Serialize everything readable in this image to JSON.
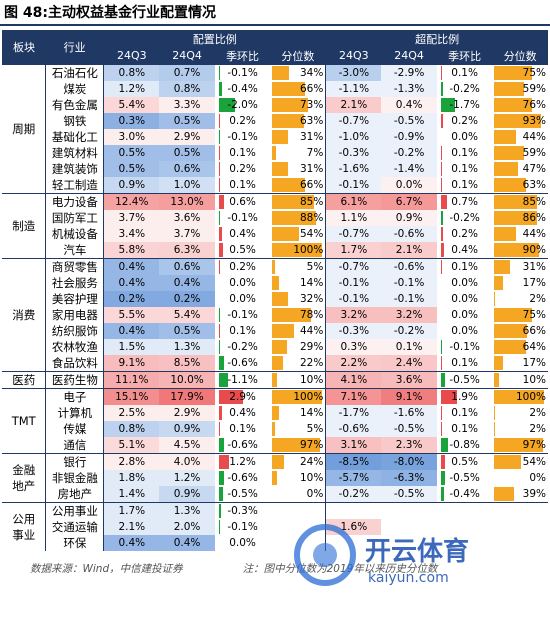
{
  "title": "图 48:主动权益基金行业配置情况",
  "headers": {
    "block": "板块",
    "industry": "行业",
    "alloc_group": "配置比例",
    "over_group": "超配比例",
    "q1": "24Q3",
    "q2": "24Q4",
    "qoq": "季环比",
    "pct": "分位数"
  },
  "groups": [
    {
      "name": "周期",
      "rows": [
        {
          "ind": "石油石化",
          "a3": "0.8%",
          "a4": "0.7%",
          "aq": "-0.1%",
          "aqv": -0.1,
          "ap": "34%",
          "apv": 34,
          "o3": "-3.0%",
          "o4": "-2.9%",
          "oq": "0.1%",
          "oqv": 0.1,
          "op": "75%",
          "opv": 75,
          "a3v": 0.8,
          "a4v": 0.7,
          "o3v": -3.0,
          "o4v": -2.9
        },
        {
          "ind": "煤炭",
          "a3": "1.2%",
          "a4": "0.8%",
          "aq": "-0.4%",
          "aqv": -0.4,
          "ap": "66%",
          "apv": 66,
          "o3": "-1.1%",
          "o4": "-1.3%",
          "oq": "-0.2%",
          "oqv": -0.2,
          "op": "59%",
          "opv": 59,
          "a3v": 1.2,
          "a4v": 0.8,
          "o3v": -1.1,
          "o4v": -1.3
        },
        {
          "ind": "有色金属",
          "a3": "5.4%",
          "a4": "3.3%",
          "aq": "-2.0%",
          "aqv": -2.0,
          "ap": "73%",
          "apv": 73,
          "o3": "2.1%",
          "o4": "0.4%",
          "oq": "-1.7%",
          "oqv": -1.7,
          "op": "76%",
          "opv": 76,
          "a3v": 5.4,
          "a4v": 3.3,
          "o3v": 2.1,
          "o4v": 0.4
        },
        {
          "ind": "钢铁",
          "a3": "0.3%",
          "a4": "0.5%",
          "aq": "0.2%",
          "aqv": 0.2,
          "ap": "63%",
          "apv": 63,
          "o3": "-0.7%",
          "o4": "-0.5%",
          "oq": "0.2%",
          "oqv": 0.2,
          "op": "93%",
          "opv": 93,
          "a3v": 0.3,
          "a4v": 0.5,
          "o3v": -0.7,
          "o4v": -0.5
        },
        {
          "ind": "基础化工",
          "a3": "3.0%",
          "a4": "2.9%",
          "aq": "-0.1%",
          "aqv": -0.1,
          "ap": "31%",
          "apv": 31,
          "o3": "-1.0%",
          "o4": "-0.9%",
          "oq": "0.0%",
          "oqv": 0.0,
          "op": "44%",
          "opv": 44,
          "a3v": 3.0,
          "a4v": 2.9,
          "o3v": -1.0,
          "o4v": -0.9
        },
        {
          "ind": "建筑材料",
          "a3": "0.5%",
          "a4": "0.5%",
          "aq": "0.1%",
          "aqv": 0.1,
          "ap": "7%",
          "apv": 7,
          "o3": "-0.3%",
          "o4": "-0.2%",
          "oq": "0.1%",
          "oqv": 0.1,
          "op": "59%",
          "opv": 59,
          "a3v": 0.5,
          "a4v": 0.5,
          "o3v": -0.3,
          "o4v": -0.2
        },
        {
          "ind": "建筑装饰",
          "a3": "0.5%",
          "a4": "0.6%",
          "aq": "0.2%",
          "aqv": 0.2,
          "ap": "31%",
          "apv": 31,
          "o3": "-1.6%",
          "o4": "-1.4%",
          "oq": "0.1%",
          "oqv": 0.1,
          "op": "47%",
          "opv": 47,
          "a3v": 0.5,
          "a4v": 0.6,
          "o3v": -1.6,
          "o4v": -1.4
        },
        {
          "ind": "轻工制造",
          "a3": "0.9%",
          "a4": "1.0%",
          "aq": "0.1%",
          "aqv": 0.1,
          "ap": "66%",
          "apv": 66,
          "o3": "-0.1%",
          "o4": "0.0%",
          "oq": "0.1%",
          "oqv": 0.1,
          "op": "63%",
          "opv": 63,
          "a3v": 0.9,
          "a4v": 1.0,
          "o3v": -0.1,
          "o4v": 0.0
        }
      ]
    },
    {
      "name": "制造",
      "rows": [
        {
          "ind": "电力设备",
          "a3": "12.4%",
          "a4": "13.0%",
          "aq": "0.6%",
          "aqv": 0.6,
          "ap": "85%",
          "apv": 85,
          "o3": "6.1%",
          "o4": "6.7%",
          "oq": "0.7%",
          "oqv": 0.7,
          "op": "85%",
          "opv": 85,
          "a3v": 12.4,
          "a4v": 13.0,
          "o3v": 6.1,
          "o4v": 6.7
        },
        {
          "ind": "国防军工",
          "a3": "3.7%",
          "a4": "3.6%",
          "aq": "-0.1%",
          "aqv": -0.1,
          "ap": "88%",
          "apv": 88,
          "o3": "1.1%",
          "o4": "0.9%",
          "oq": "-0.2%",
          "oqv": -0.2,
          "op": "86%",
          "opv": 86,
          "a3v": 3.7,
          "a4v": 3.6,
          "o3v": 1.1,
          "o4v": 0.9
        },
        {
          "ind": "机械设备",
          "a3": "3.4%",
          "a4": "3.7%",
          "aq": "0.4%",
          "aqv": 0.4,
          "ap": "54%",
          "apv": 54,
          "o3": "-0.7%",
          "o4": "-0.6%",
          "oq": "0.2%",
          "oqv": 0.2,
          "op": "44%",
          "opv": 44,
          "a3v": 3.4,
          "a4v": 3.7,
          "o3v": -0.7,
          "o4v": -0.6
        },
        {
          "ind": "汽车",
          "a3": "5.8%",
          "a4": "6.3%",
          "aq": "0.5%",
          "aqv": 0.5,
          "ap": "100%",
          "apv": 100,
          "o3": "1.7%",
          "o4": "2.1%",
          "oq": "0.4%",
          "oqv": 0.4,
          "op": "90%",
          "opv": 90,
          "a3v": 5.8,
          "a4v": 6.3,
          "o3v": 1.7,
          "o4v": 2.1
        }
      ]
    },
    {
      "name": "消费",
      "rows": [
        {
          "ind": "商贸零售",
          "a3": "0.4%",
          "a4": "0.6%",
          "aq": "0.2%",
          "aqv": 0.2,
          "ap": "5%",
          "apv": 5,
          "o3": "-0.7%",
          "o4": "-0.6%",
          "oq": "0.1%",
          "oqv": 0.1,
          "op": "31%",
          "opv": 31,
          "a3v": 0.4,
          "a4v": 0.6,
          "o3v": -0.7,
          "o4v": -0.6
        },
        {
          "ind": "社会服务",
          "a3": "0.4%",
          "a4": "0.4%",
          "aq": "0.0%",
          "aqv": 0.0,
          "ap": "14%",
          "apv": 14,
          "o3": "-0.1%",
          "o4": "-0.1%",
          "oq": "0.0%",
          "oqv": 0.0,
          "op": "17%",
          "opv": 17,
          "a3v": 0.4,
          "a4v": 0.4,
          "o3v": -0.1,
          "o4v": -0.1
        },
        {
          "ind": "美容护理",
          "a3": "0.2%",
          "a4": "0.2%",
          "aq": "0.0%",
          "aqv": 0.0,
          "ap": "32%",
          "apv": 32,
          "o3": "-0.1%",
          "o4": "-0.1%",
          "oq": "0.0%",
          "oqv": 0.0,
          "op": "2%",
          "opv": 2,
          "a3v": 0.2,
          "a4v": 0.2,
          "o3v": -0.1,
          "o4v": -0.1
        },
        {
          "ind": "家用电器",
          "a3": "5.5%",
          "a4": "5.4%",
          "aq": "-0.1%",
          "aqv": -0.1,
          "ap": "78%",
          "apv": 78,
          "o3": "3.2%",
          "o4": "3.2%",
          "oq": "0.0%",
          "oqv": 0.0,
          "op": "75%",
          "opv": 75,
          "a3v": 5.5,
          "a4v": 5.4,
          "o3v": 3.2,
          "o4v": 3.2
        },
        {
          "ind": "纺织服饰",
          "a3": "0.4%",
          "a4": "0.5%",
          "aq": "0.1%",
          "aqv": 0.1,
          "ap": "44%",
          "apv": 44,
          "o3": "-0.3%",
          "o4": "-0.2%",
          "oq": "0.0%",
          "oqv": 0.0,
          "op": "66%",
          "opv": 66,
          "a3v": 0.4,
          "a4v": 0.5,
          "o3v": -0.3,
          "o4v": -0.2
        },
        {
          "ind": "农林牧渔",
          "a3": "1.5%",
          "a4": "1.3%",
          "aq": "-0.2%",
          "aqv": -0.2,
          "ap": "29%",
          "apv": 29,
          "o3": "0.3%",
          "o4": "0.1%",
          "oq": "-0.1%",
          "oqv": -0.1,
          "op": "64%",
          "opv": 64,
          "a3v": 1.5,
          "a4v": 1.3,
          "o3v": 0.3,
          "o4v": 0.1
        },
        {
          "ind": "食品饮料",
          "a3": "9.1%",
          "a4": "8.5%",
          "aq": "-0.6%",
          "aqv": -0.6,
          "ap": "22%",
          "apv": 22,
          "o3": "2.2%",
          "o4": "2.4%",
          "oq": "0.1%",
          "oqv": 0.1,
          "op": "17%",
          "opv": 17,
          "a3v": 9.1,
          "a4v": 8.5,
          "o3v": 2.2,
          "o4v": 2.4
        }
      ]
    },
    {
      "name": "医药",
      "rows": [
        {
          "ind": "医药生物",
          "a3": "11.1%",
          "a4": "10.0%",
          "aq": "-1.1%",
          "aqv": -1.1,
          "ap": "10%",
          "apv": 10,
          "o3": "4.1%",
          "o4": "3.6%",
          "oq": "-0.5%",
          "oqv": -0.5,
          "op": "10%",
          "opv": 10,
          "a3v": 11.1,
          "a4v": 10.0,
          "o3v": 4.1,
          "o4v": 3.6
        }
      ]
    },
    {
      "name": "TMT",
      "rows": [
        {
          "ind": "电子",
          "a3": "15.1%",
          "a4": "17.9%",
          "aq": "2.9%",
          "aqv": 2.9,
          "ap": "100%",
          "apv": 100,
          "o3": "7.1%",
          "o4": "9.1%",
          "oq": "1.9%",
          "oqv": 1.9,
          "op": "100%",
          "opv": 100,
          "a3v": 15.1,
          "a4v": 17.9,
          "o3v": 7.1,
          "o4v": 9.1
        },
        {
          "ind": "计算机",
          "a3": "2.5%",
          "a4": "2.9%",
          "aq": "0.4%",
          "aqv": 0.4,
          "ap": "14%",
          "apv": 14,
          "o3": "-1.7%",
          "o4": "-1.6%",
          "oq": "0.1%",
          "oqv": 0.1,
          "op": "2%",
          "opv": 2,
          "a3v": 2.5,
          "a4v": 2.9,
          "o3v": -1.7,
          "o4v": -1.6
        },
        {
          "ind": "传媒",
          "a3": "0.8%",
          "a4": "0.9%",
          "aq": "0.1%",
          "aqv": 0.1,
          "ap": "5%",
          "apv": 5,
          "o3": "-0.6%",
          "o4": "-0.5%",
          "oq": "0.1%",
          "oqv": 0.1,
          "op": "2%",
          "opv": 2,
          "a3v": 0.8,
          "a4v": 0.9,
          "o3v": -0.6,
          "o4v": -0.5
        },
        {
          "ind": "通信",
          "a3": "5.1%",
          "a4": "4.5%",
          "aq": "-0.6%",
          "aqv": -0.6,
          "ap": "97%",
          "apv": 97,
          "o3": "3.1%",
          "o4": "2.3%",
          "oq": "-0.8%",
          "oqv": -0.8,
          "op": "97%",
          "opv": 97,
          "a3v": 5.1,
          "a4v": 4.5,
          "o3v": 3.1,
          "o4v": 2.3
        }
      ]
    },
    {
      "name": "金融地产",
      "name_lines": [
        "金融",
        "地产"
      ],
      "rows": [
        {
          "ind": "银行",
          "a3": "2.8%",
          "a4": "4.0%",
          "aq": "1.2%",
          "aqv": 1.2,
          "ap": "24%",
          "apv": 24,
          "o3": "-8.5%",
          "o4": "-8.0%",
          "oq": "0.5%",
          "oqv": 0.5,
          "op": "54%",
          "opv": 54,
          "a3v": 2.8,
          "a4v": 4.0,
          "o3v": -8.5,
          "o4v": -8.0
        },
        {
          "ind": "非银金融",
          "a3": "1.8%",
          "a4": "1.2%",
          "aq": "-0.6%",
          "aqv": -0.6,
          "ap": "10%",
          "apv": 10,
          "o3": "-5.7%",
          "o4": "-6.3%",
          "oq": "-0.5%",
          "oqv": -0.5,
          "op": "0%",
          "opv": 0,
          "a3v": 1.8,
          "a4v": 1.2,
          "o3v": -5.7,
          "o4v": -6.3
        },
        {
          "ind": "房地产",
          "a3": "1.4%",
          "a4": "0.9%",
          "aq": "-0.5%",
          "aqv": -0.5,
          "ap": "0%",
          "apv": 0,
          "o3": "-0.2%",
          "o4": "-0.5%",
          "oq": "-0.4%",
          "oqv": -0.4,
          "op": "39%",
          "opv": 39,
          "a3v": 1.4,
          "a4v": 0.9,
          "o3v": -0.2,
          "o4v": -0.5
        }
      ]
    },
    {
      "name": "公用事业",
      "name_lines": [
        "公用",
        "事业"
      ],
      "rows": [
        {
          "ind": "公用事业",
          "a3": "1.7%",
          "a4": "1.3%",
          "aq": "-0.3%",
          "aqv": -0.3,
          "ap": "",
          "apv": 0,
          "o3": "",
          "o4": "",
          "oq": "",
          "oqv": 0,
          "op": "",
          "opv": 0,
          "a3v": 1.7,
          "a4v": 1.3,
          "o3v": 0,
          "o4v": 0
        },
        {
          "ind": "交通运输",
          "a3": "2.1%",
          "a4": "2.0%",
          "aq": "-0.1%",
          "aqv": -0.1,
          "ap": "",
          "apv": 0,
          "o3": "1.6%",
          "o4": "",
          "oq": "",
          "oqv": 0,
          "op": "",
          "opv": 0,
          "a3v": 2.1,
          "a4v": 2.0,
          "o3v": 1.6,
          "o4v": 0
        },
        {
          "ind": "环保",
          "a3": "0.4%",
          "a4": "0.4%",
          "aq": "0.0%",
          "aqv": 0.0,
          "ap": "",
          "apv": 0,
          "o3": "",
          "o4": "",
          "oq": "",
          "oqv": 0,
          "op": "",
          "opv": 0,
          "a3v": 0.4,
          "a4v": 0.4,
          "o3v": 0,
          "o4v": 0
        }
      ]
    }
  ],
  "footer": {
    "source": "数据来源：Wind，中信建投证券",
    "note": "注：图中分位数为2019年以来历史分位数"
  },
  "watermark": {
    "brand": "开云体育",
    "url": "kaiyun.com"
  },
  "colors": {
    "header_bg": "#1f3864",
    "blue": "#5b8fd6",
    "red": "#f07070",
    "green": "#1aa33a",
    "orange": "#f5a623"
  }
}
